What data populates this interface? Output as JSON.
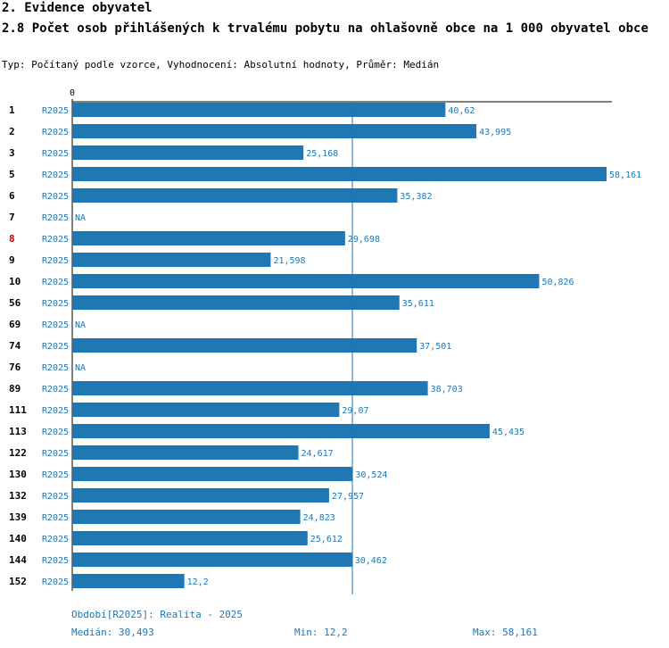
{
  "header": {
    "section": "2. Evidence obyvatel",
    "title": "2.8 Počet osob přihlášených k trvalému pobytu na ohlašovně obce na 1 000 obyvatel obce",
    "subtitle": "Typ: Počítaný podle vzorce, Vyhodnocení: Absolutní hodnoty, Průměr: Medián"
  },
  "chart_data": {
    "type": "bar",
    "orientation": "horizontal",
    "title": "2.8 Počet osob přihlášených k trvalému pobytu na ohlašovně obce na 1 000 obyvatel obce",
    "axis_zero_label": "0",
    "xlim": [
      0,
      58.161
    ],
    "median_line": 30.493,
    "highlighted_category": "8",
    "period_label": "R2025",
    "categories": [
      "1",
      "2",
      "3",
      "5",
      "6",
      "7",
      "8",
      "9",
      "10",
      "56",
      "69",
      "74",
      "76",
      "89",
      "111",
      "113",
      "122",
      "130",
      "132",
      "139",
      "140",
      "144",
      "152"
    ],
    "series_labels": [
      "R2025",
      "R2025",
      "R2025",
      "R2025",
      "R2025",
      "R2025",
      "R2025",
      "R2025",
      "R2025",
      "R2025",
      "R2025",
      "R2025",
      "R2025",
      "R2025",
      "R2025",
      "R2025",
      "R2025",
      "R2025",
      "R2025",
      "R2025",
      "R2025",
      "R2025",
      "R2025"
    ],
    "values": [
      40.62,
      43.995,
      25.168,
      58.161,
      35.382,
      null,
      29.698,
      21.598,
      50.826,
      35.611,
      null,
      37.501,
      null,
      38.703,
      29.07,
      45.435,
      24.617,
      30.524,
      27.957,
      24.823,
      25.612,
      30.462,
      12.2
    ],
    "value_labels": [
      "40,62",
      "43,995",
      "25,168",
      "58,161",
      "35,382",
      "NA",
      "29,698",
      "21,598",
      "50,826",
      "35,611",
      "NA",
      "37,501",
      "NA",
      "38,703",
      "29,07",
      "45,435",
      "24,617",
      "30,524",
      "27,957",
      "24,823",
      "25,612",
      "30,462",
      "12,2"
    ],
    "colors": {
      "bar": "#1f77b4",
      "highlight_text": "#cc0000",
      "median_line": "#1f77b4",
      "axis": "#000000"
    }
  },
  "footer": {
    "period": "Období[R2025]: Realita - 2025",
    "median": "Medián: 30,493",
    "min": "Min: 12,2",
    "max": "Max: 58,161"
  }
}
